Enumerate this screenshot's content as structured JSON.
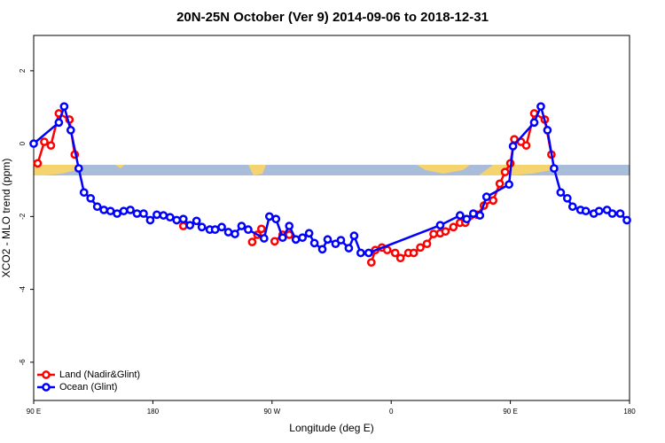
{
  "chart_data": {
    "type": "line",
    "title": "20N-25N October (Ver 9)   2014-09-06 to 2018-12-31",
    "x_label": "Longitude (deg E)",
    "y_label": "XCO2 - MLO trend (ppm)",
    "xlim": [
      90,
      540
    ],
    "ylim": [
      -7.05,
      2.97
    ],
    "xticks": [
      {
        "value": 90,
        "label": "90 E"
      },
      {
        "value": 180,
        "label": "180"
      },
      {
        "value": 270,
        "label": "90 W"
      },
      {
        "value": 360,
        "label": "0"
      },
      {
        "value": 450,
        "label": "90 E"
      },
      {
        "value": 540,
        "label": "180"
      }
    ],
    "yticks": [
      -6,
      -4,
      -2,
      0,
      2
    ],
    "legend": "bottom-left",
    "series": [
      {
        "name": "Land (Nadir&Glint)",
        "color": "#ff0000",
        "x": [
          93,
          98,
          103,
          109,
          117,
          121,
          null,
          203,
          null,
          255,
          259,
          262,
          null,
          272,
          278,
          283,
          null,
          345,
          348,
          353,
          357,
          363,
          367,
          373,
          377,
          382,
          387,
          392,
          397,
          401,
          407,
          412,
          416,
          425,
          430,
          437,
          442,
          446,
          450,
          453,
          458,
          462,
          468,
          476,
          481
        ],
        "values": [
          -0.54,
          0.05,
          -0.05,
          0.83,
          0.66,
          -0.3,
          null,
          -2.26,
          null,
          -2.7,
          -2.5,
          -2.34,
          null,
          -2.68,
          -2.5,
          -2.5,
          null,
          -3.26,
          -2.92,
          -2.85,
          -2.92,
          -3.0,
          -3.14,
          -3.0,
          -3.0,
          -2.85,
          -2.75,
          -2.48,
          -2.46,
          -2.41,
          -2.29,
          -2.17,
          -2.17,
          -1.95,
          -1.7,
          -1.56,
          -1.1,
          -0.78,
          -0.54,
          0.12,
          0.05,
          -0.05,
          0.83,
          0.66,
          -0.3
        ]
      },
      {
        "name": "Ocean (Glint)",
        "color": "#0000ff",
        "x": [
          90,
          109,
          113,
          118,
          124,
          128,
          133,
          138,
          143,
          148,
          153,
          158,
          163,
          168,
          173,
          178,
          183,
          188,
          193,
          198,
          203,
          208,
          213,
          217,
          223,
          227,
          232,
          237,
          242,
          247,
          252,
          264,
          268,
          273,
          278,
          283,
          288,
          293,
          298,
          302,
          308,
          312,
          318,
          322,
          328,
          332,
          337,
          343,
          397,
          412,
          417,
          422,
          427,
          432,
          449,
          452,
          468,
          473,
          478,
          483,
          488,
          493,
          497,
          503,
          507,
          513,
          517,
          523,
          527,
          533,
          538
        ],
        "values": [
          0,
          0.58,
          1.02,
          0.37,
          -0.68,
          -1.34,
          -1.5,
          -1.73,
          -1.82,
          -1.85,
          -1.92,
          -1.85,
          -1.82,
          -1.92,
          -1.92,
          -2.1,
          -1.95,
          -1.97,
          -2.02,
          -2.1,
          -2.07,
          -2.24,
          -2.12,
          -2.29,
          -2.36,
          -2.36,
          -2.29,
          -2.43,
          -2.48,
          -2.26,
          -2.36,
          -2.6,
          -2.0,
          -2.07,
          -2.58,
          -2.26,
          -2.63,
          -2.58,
          -2.46,
          -2.73,
          -2.9,
          -2.63,
          -2.75,
          -2.65,
          -2.87,
          -2.53,
          -3.0,
          -3.0,
          -2.24,
          -1.97,
          -2.07,
          -1.92,
          -1.97,
          -1.46,
          -1.12,
          -0.07,
          0.58,
          1.02,
          0.37,
          -0.68,
          -1.34,
          -1.5,
          -1.73,
          -1.82,
          -1.85,
          -1.92,
          -1.85,
          -1.82,
          -1.92,
          -1.92,
          -2.1
        ]
      }
    ]
  }
}
